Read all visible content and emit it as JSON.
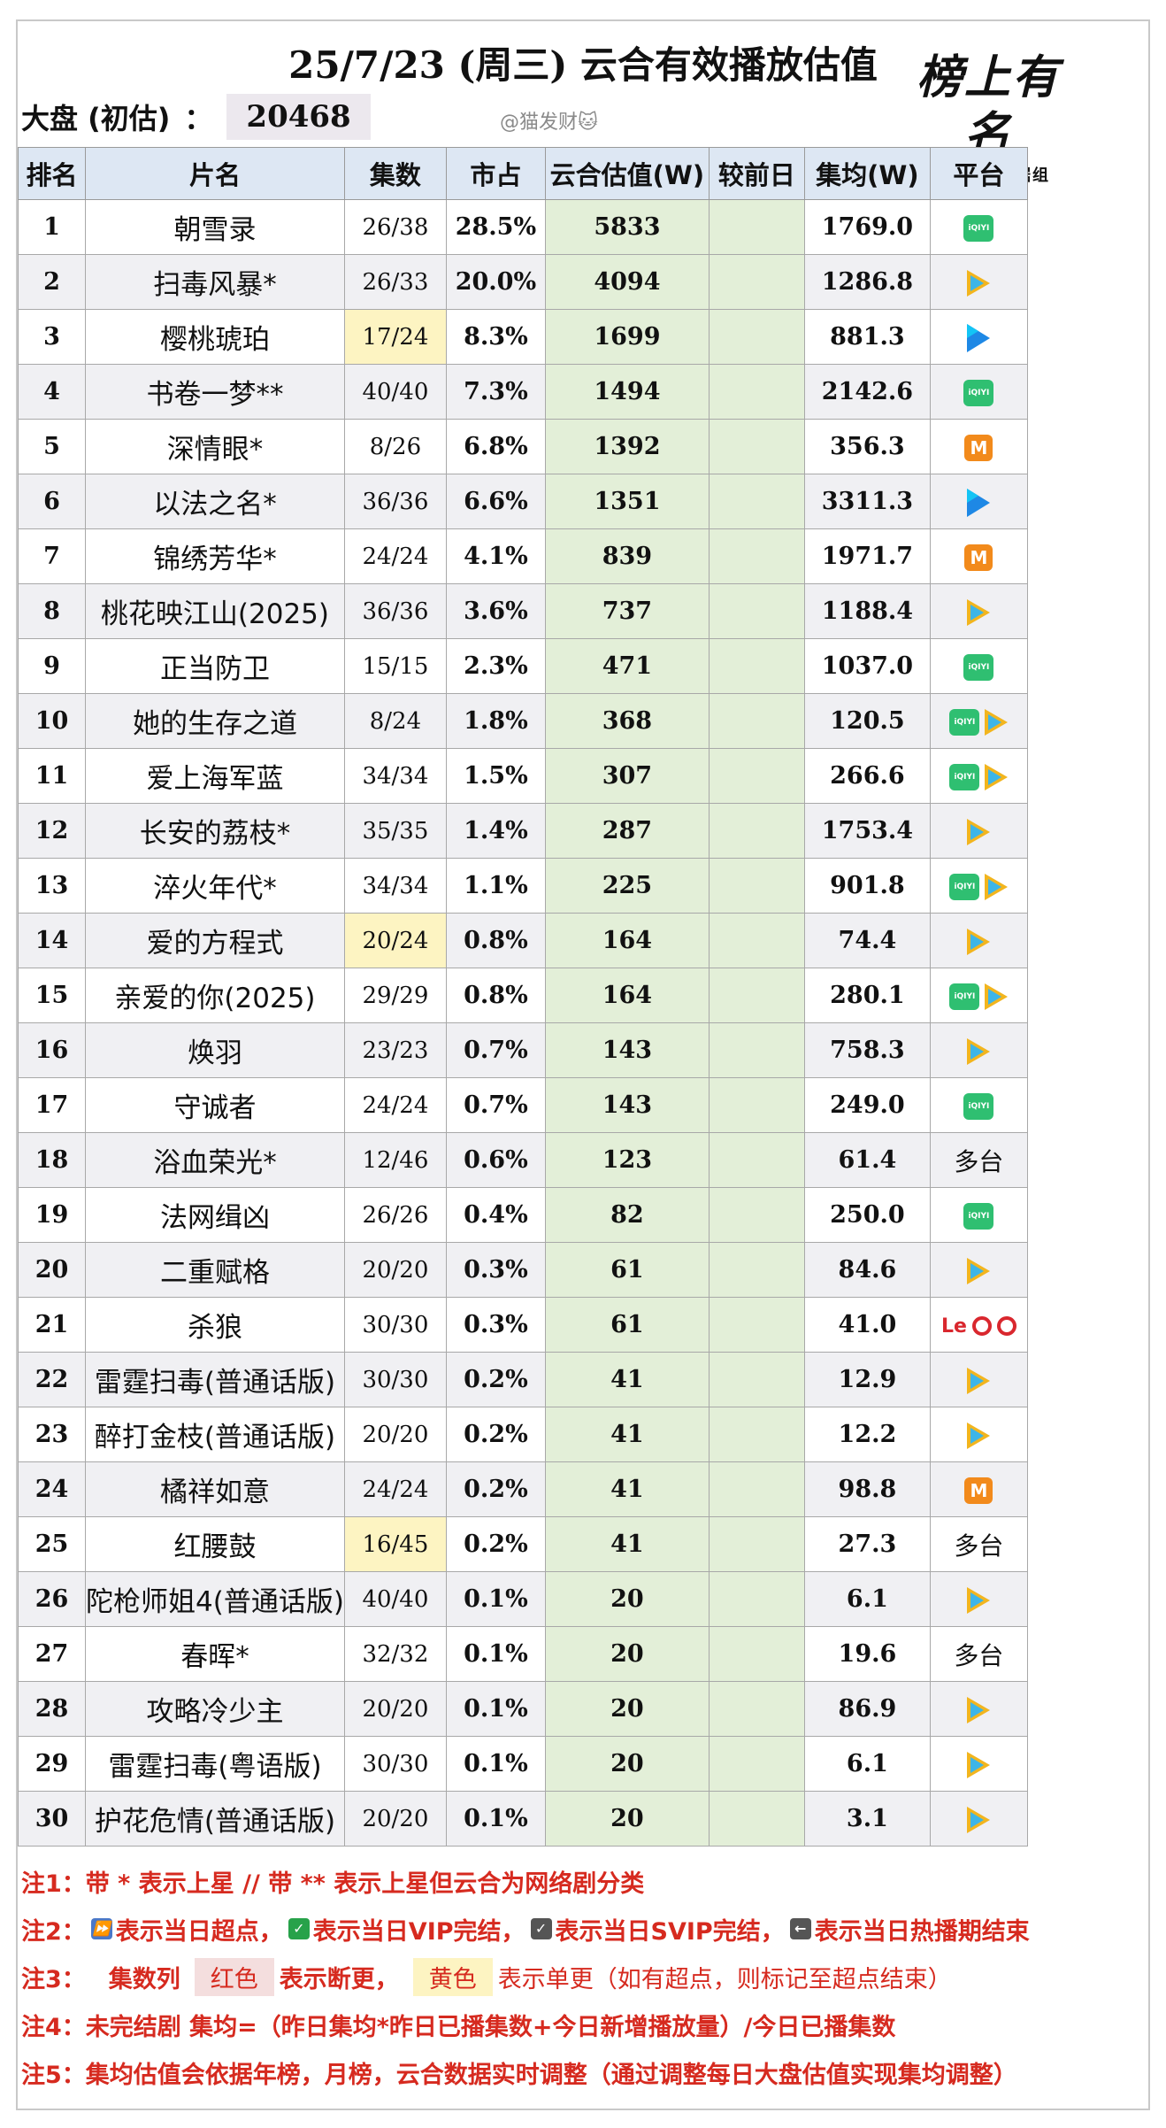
{
  "header": {
    "title": "25/7/23 (周三) 云合有效播放估值",
    "market_label": "大盘 (初估)",
    "market_sep": "：",
    "market_value": "20468",
    "watermark": "@猫发财🐱",
    "logo_script": "榜上有名",
    "logo_sub": "风清气正数据组"
  },
  "columns": [
    "排名",
    "片名",
    "集数",
    "市占",
    "云合估值(W)",
    "较前日",
    "集均(W)",
    "平台"
  ],
  "rows": [
    {
      "rank": "1",
      "name": "朝雪录",
      "episodes": "26/38",
      "share": "28.5%",
      "value": "5833",
      "delta": "",
      "avg": "1769.0",
      "platform": [
        "iqiyi"
      ],
      "platform_text": ""
    },
    {
      "rank": "2",
      "name": "扫毒风暴*",
      "episodes": "26/33",
      "share": "20.0%",
      "value": "4094",
      "delta": "",
      "avg": "1286.8",
      "platform": [
        "tencent"
      ],
      "platform_text": ""
    },
    {
      "rank": "3",
      "name": "樱桃琥珀",
      "episodes": "17/24",
      "share": "8.3%",
      "value": "1699",
      "delta": "",
      "avg": "881.3",
      "platform": [
        "youku"
      ],
      "platform_text": "",
      "single": true
    },
    {
      "rank": "4",
      "name": "书卷一梦**",
      "episodes": "40/40",
      "share": "7.3%",
      "value": "1494",
      "delta": "",
      "avg": "2142.6",
      "platform": [
        "iqiyi"
      ],
      "platform_text": ""
    },
    {
      "rank": "5",
      "name": "深情眼*",
      "episodes": "8/26",
      "share": "6.8%",
      "value": "1392",
      "delta": "",
      "avg": "356.3",
      "platform": [
        "mango"
      ],
      "platform_text": ""
    },
    {
      "rank": "6",
      "name": "以法之名*",
      "episodes": "36/36",
      "share": "6.6%",
      "value": "1351",
      "delta": "",
      "avg": "3311.3",
      "platform": [
        "youku"
      ],
      "platform_text": ""
    },
    {
      "rank": "7",
      "name": "锦绣芳华*",
      "episodes": "24/24",
      "share": "4.1%",
      "value": "839",
      "delta": "",
      "avg": "1971.7",
      "platform": [
        "mango"
      ],
      "platform_text": ""
    },
    {
      "rank": "8",
      "name": "桃花映江山(2025)",
      "episodes": "36/36",
      "share": "3.6%",
      "value": "737",
      "delta": "",
      "avg": "1188.4",
      "platform": [
        "tencent"
      ],
      "platform_text": ""
    },
    {
      "rank": "9",
      "name": "正当防卫",
      "episodes": "15/15",
      "share": "2.3%",
      "value": "471",
      "delta": "",
      "avg": "1037.0",
      "platform": [
        "iqiyi"
      ],
      "platform_text": ""
    },
    {
      "rank": "10",
      "name": "她的生存之道",
      "episodes": "8/24",
      "share": "1.8%",
      "value": "368",
      "delta": "",
      "avg": "120.5",
      "platform": [
        "iqiyi",
        "tencent"
      ],
      "platform_text": ""
    },
    {
      "rank": "11",
      "name": "爱上海军蓝",
      "episodes": "34/34",
      "share": "1.5%",
      "value": "307",
      "delta": "",
      "avg": "266.6",
      "platform": [
        "iqiyi",
        "tencent"
      ],
      "platform_text": ""
    },
    {
      "rank": "12",
      "name": "长安的荔枝*",
      "episodes": "35/35",
      "share": "1.4%",
      "value": "287",
      "delta": "",
      "avg": "1753.4",
      "platform": [
        "tencent"
      ],
      "platform_text": ""
    },
    {
      "rank": "13",
      "name": "淬火年代*",
      "episodes": "34/34",
      "share": "1.1%",
      "value": "225",
      "delta": "",
      "avg": "901.8",
      "platform": [
        "iqiyi",
        "tencent"
      ],
      "platform_text": ""
    },
    {
      "rank": "14",
      "name": "爱的方程式",
      "episodes": "20/24",
      "share": "0.8%",
      "value": "164",
      "delta": "",
      "avg": "74.4",
      "platform": [
        "tencent"
      ],
      "platform_text": "",
      "single": true
    },
    {
      "rank": "15",
      "name": "亲爱的你(2025)",
      "episodes": "29/29",
      "share": "0.8%",
      "value": "164",
      "delta": "",
      "avg": "280.1",
      "platform": [
        "iqiyi",
        "tencent"
      ],
      "platform_text": ""
    },
    {
      "rank": "16",
      "name": "焕羽",
      "episodes": "23/23",
      "share": "0.7%",
      "value": "143",
      "delta": "",
      "avg": "758.3",
      "platform": [
        "tencent"
      ],
      "platform_text": ""
    },
    {
      "rank": "17",
      "name": "守诚者",
      "episodes": "24/24",
      "share": "0.7%",
      "value": "143",
      "delta": "",
      "avg": "249.0",
      "platform": [
        "iqiyi"
      ],
      "platform_text": ""
    },
    {
      "rank": "18",
      "name": "浴血荣光*",
      "episodes": "12/46",
      "share": "0.6%",
      "value": "123",
      "delta": "",
      "avg": "61.4",
      "platform": [],
      "platform_text": "多台"
    },
    {
      "rank": "19",
      "name": "法网缉凶",
      "episodes": "26/26",
      "share": "0.4%",
      "value": "82",
      "delta": "",
      "avg": "250.0",
      "platform": [
        "iqiyi"
      ],
      "platform_text": ""
    },
    {
      "rank": "20",
      "name": "二重赋格",
      "episodes": "20/20",
      "share": "0.3%",
      "value": "61",
      "delta": "",
      "avg": "84.6",
      "platform": [
        "tencent"
      ],
      "platform_text": ""
    },
    {
      "rank": "21",
      "name": "杀狼",
      "episodes": "30/30",
      "share": "0.3%",
      "value": "61",
      "delta": "",
      "avg": "41.0",
      "platform": [
        "le",
        "circle",
        "circle"
      ],
      "platform_text": ""
    },
    {
      "rank": "22",
      "name": "雷霆扫毒(普通话版)",
      "episodes": "30/30",
      "share": "0.2%",
      "value": "41",
      "delta": "",
      "avg": "12.9",
      "platform": [
        "tencent"
      ],
      "platform_text": ""
    },
    {
      "rank": "23",
      "name": "醉打金枝(普通话版)",
      "episodes": "20/20",
      "share": "0.2%",
      "value": "41",
      "delta": "",
      "avg": "12.2",
      "platform": [
        "tencent"
      ],
      "platform_text": ""
    },
    {
      "rank": "24",
      "name": "橘祥如意",
      "episodes": "24/24",
      "share": "0.2%",
      "value": "41",
      "delta": "",
      "avg": "98.8",
      "platform": [
        "mango"
      ],
      "platform_text": ""
    },
    {
      "rank": "25",
      "name": "红腰鼓",
      "episodes": "16/45",
      "share": "0.2%",
      "value": "41",
      "delta": "",
      "avg": "27.3",
      "platform": [],
      "platform_text": "多台",
      "single": true
    },
    {
      "rank": "26",
      "name": "陀枪师姐4(普通话版)",
      "episodes": "40/40",
      "share": "0.1%",
      "value": "20",
      "delta": "",
      "avg": "6.1",
      "platform": [
        "tencent"
      ],
      "platform_text": ""
    },
    {
      "rank": "27",
      "name": "春晖*",
      "episodes": "32/32",
      "share": "0.1%",
      "value": "20",
      "delta": "",
      "avg": "19.6",
      "platform": [],
      "platform_text": "多台"
    },
    {
      "rank": "28",
      "name": "攻略冷少主",
      "episodes": "20/20",
      "share": "0.1%",
      "value": "20",
      "delta": "",
      "avg": "86.9",
      "platform": [
        "tencent"
      ],
      "platform_text": ""
    },
    {
      "rank": "29",
      "name": "雷霆扫毒(粤语版)",
      "episodes": "30/30",
      "share": "0.1%",
      "value": "20",
      "delta": "",
      "avg": "6.1",
      "platform": [
        "tencent"
      ],
      "platform_text": ""
    },
    {
      "rank": "30",
      "name": "护花危情(普通话版)",
      "episodes": "20/20",
      "share": "0.1%",
      "value": "20",
      "delta": "",
      "avg": "3.1",
      "platform": [
        "tencent"
      ],
      "platform_text": ""
    }
  ],
  "platform_icons": {
    "iqiyi": {
      "icon": "iqiyi-icon",
      "text": "iQIYI",
      "color": "#2fbf71"
    },
    "tencent": {
      "icon": "tencent-video-icon",
      "text": "",
      "color": "#f2b51e"
    },
    "youku": {
      "icon": "youku-icon",
      "text": "",
      "color": "#1e88e5"
    },
    "mango": {
      "icon": "mango-tv-icon",
      "text": "M",
      "color": "#f28a1b"
    },
    "le": {
      "icon": "le-tv-icon",
      "text": "Le",
      "color": "#d9272e"
    },
    "circle": {
      "icon": "red-circle-play-icon",
      "text": "",
      "color": "#d9272e"
    }
  },
  "notes": {
    "n1": "注1：带 * 表示上星 // 带 ** 表示上星但云合为网络剧分类",
    "n2_prefix": "注2：",
    "n2_a": "表示当日超点，",
    "n2_b": "表示当日VIP完结，",
    "n2_c": "表示当日SVIP完结，",
    "n2_d": "表示当日热播期结束",
    "n3_prefix": "注3：",
    "n3_col": "集数列",
    "n3_red": "红色",
    "n3_mid": "表示断更，",
    "n3_yellow": "黄色",
    "n3_end": "表示单更（如有超点，则标记至超点结束）",
    "n4": "注4：未完结剧 集均=（昨日集均*昨日已播集数+今日新增播放量）/今日已播集数",
    "n5": "注5：集均估值会依据年榜，月榜，云合数据实时调整（通过调整每日大盘估值实现集均调整）"
  },
  "colors": {
    "header_bg": "#dde7f3",
    "value_col_bg": "#e3efd8",
    "single_update": "#fdf4c2",
    "break_update": "#f4dede",
    "note_text": "#d62a1f"
  }
}
